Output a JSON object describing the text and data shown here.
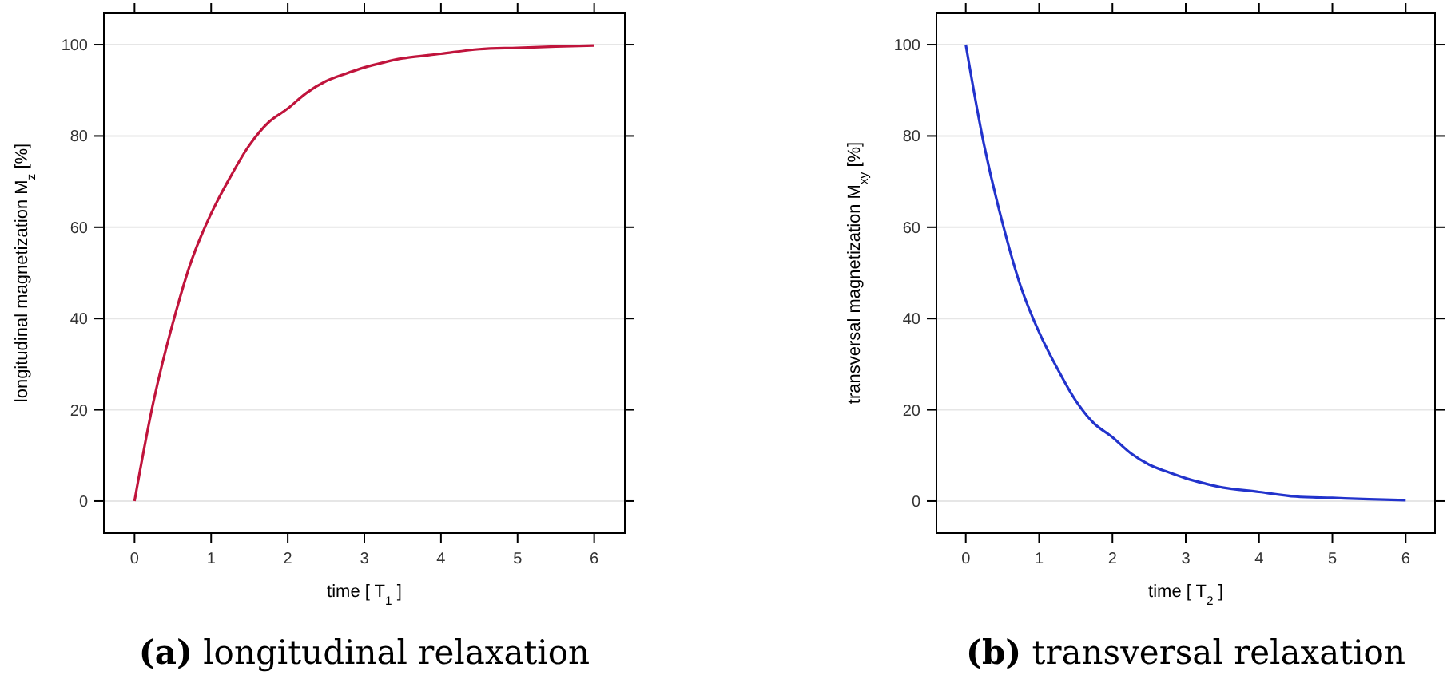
{
  "chart_data": [
    {
      "type": "line",
      "title": "(a) longitudinal relaxation",
      "xlabel": "time [ T$_{1}$ ]",
      "ylabel": "longitudinal magnetization  M$_{z}$  [%]",
      "x": [
        0,
        0.25,
        0.5,
        0.75,
        1,
        1.25,
        1.5,
        1.75,
        2,
        2.25,
        2.5,
        2.75,
        3,
        3.25,
        3.5,
        4,
        4.5,
        5,
        5.5,
        6
      ],
      "series": [
        {
          "color": "#c0143c",
          "values": [
            0,
            22,
            39,
            53,
            63,
            71,
            78,
            83,
            86,
            89.5,
            92,
            93.6,
            95,
            96.1,
            97,
            98,
            99,
            99.3,
            99.6,
            99.8
          ]
        }
      ],
      "xlim": [
        -0.4,
        6.4
      ],
      "ylim": [
        -7,
        107
      ],
      "xticks": [
        0,
        1,
        2,
        3,
        4,
        5,
        6
      ],
      "yticks": [
        0,
        20,
        40,
        60,
        80,
        100
      ],
      "grid": "y",
      "marker": "none",
      "line_style": "solid"
    },
    {
      "type": "line",
      "title": "(b) transversal relaxation",
      "xlabel": "time [ T$_{2}$ ]",
      "ylabel": "transversal magnetization  M$_{xy}$  [%]",
      "x": [
        0,
        0.25,
        0.5,
        0.75,
        1,
        1.25,
        1.5,
        1.75,
        2,
        2.25,
        2.5,
        2.75,
        3,
        3.25,
        3.5,
        4,
        4.5,
        5,
        5.5,
        6
      ],
      "series": [
        {
          "color": "#2233cc",
          "values": [
            100,
            78,
            61,
            47,
            37,
            29,
            22,
            17,
            14,
            10.5,
            8,
            6.4,
            5,
            3.9,
            3,
            2,
            1,
            0.7,
            0.4,
            0.2
          ]
        }
      ],
      "xlim": [
        -0.4,
        6.4
      ],
      "ylim": [
        -7,
        107
      ],
      "xticks": [
        0,
        1,
        2,
        3,
        4,
        5,
        6
      ],
      "yticks": [
        0,
        20,
        40,
        60,
        80,
        100
      ],
      "grid": "y",
      "marker": "none",
      "line_style": "solid"
    }
  ]
}
